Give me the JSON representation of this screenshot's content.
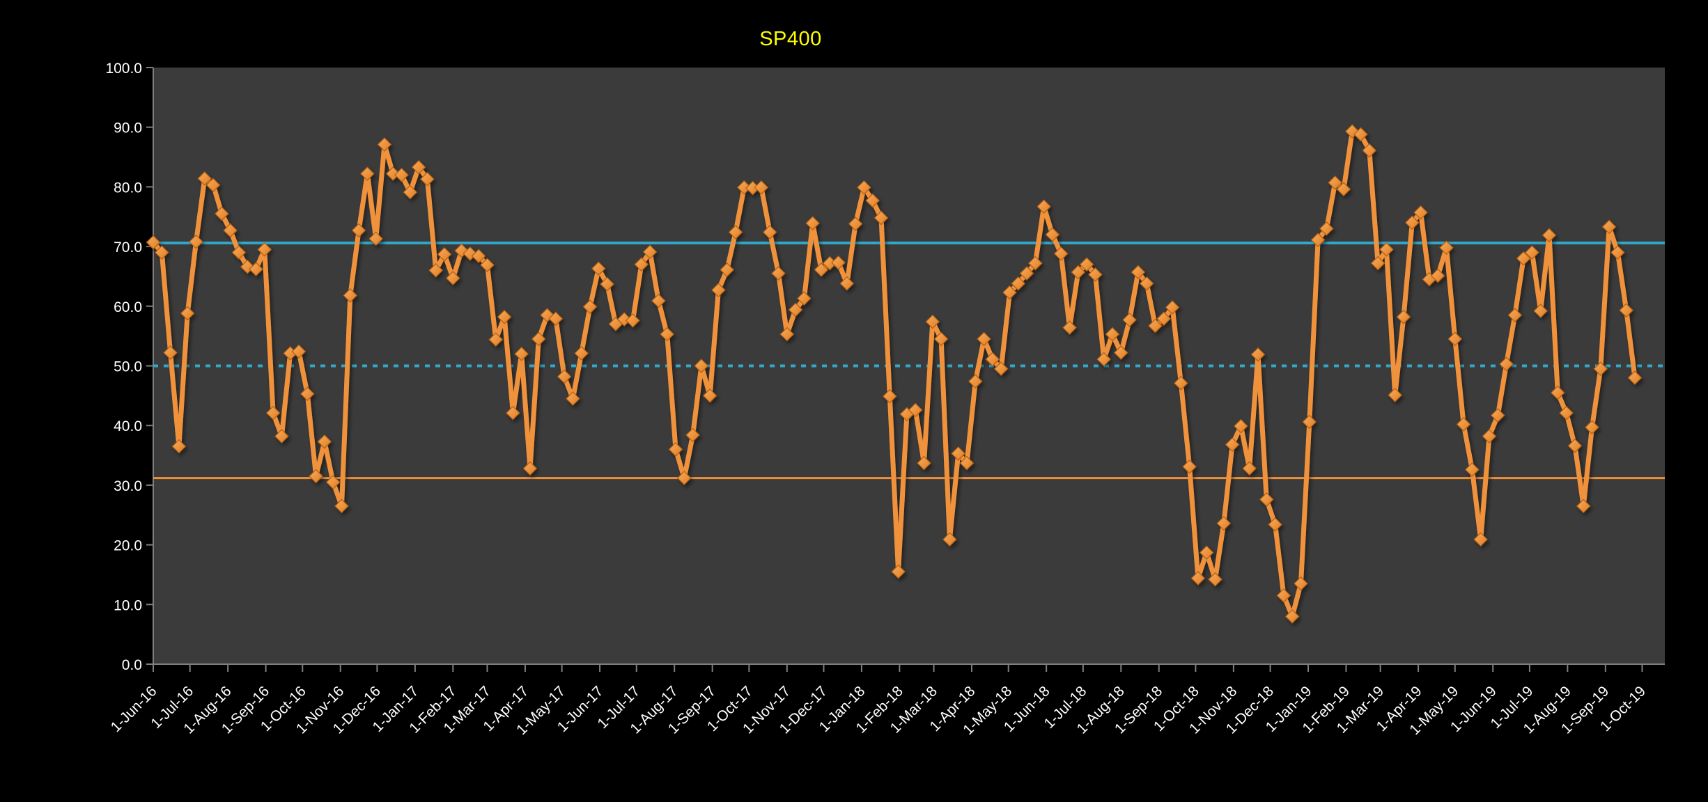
{
  "title": {
    "text": "SP400",
    "color": "#FFFF00"
  },
  "colors": {
    "page_bg": "#000000",
    "plot_bg": "#3B3B3B",
    "axis": "#7F7F7F",
    "tick_label": "#FFFFFF",
    "series": "#F0913A",
    "marker_light": "#F9AC5E",
    "marker_dark": "#E07C20",
    "marker_edge": "#AE5E13",
    "ref_cyan": "#33A7C9",
    "ref_orange": "#F0913A"
  },
  "chart_data": {
    "type": "line",
    "title": "SP400",
    "xlabel": "",
    "ylabel": "",
    "ylim": [
      0,
      100
    ],
    "y_tick_step": 10,
    "y_tick_decimals": 1,
    "grid": false,
    "legend": "none",
    "x_start_date": "1-Jun-16",
    "x_cadence": "weekly",
    "x_domain_weeks": 176.5,
    "x_tick_labels": [
      "1-Jun-16",
      "1-Jul-16",
      "1-Aug-16",
      "1-Sep-16",
      "1-Oct-16",
      "1-Nov-16",
      "1-Dec-16",
      "1-Jan-17",
      "1-Feb-17",
      "1-Mar-17",
      "1-Apr-17",
      "1-May-17",
      "1-Jun-17",
      "1-Jul-17",
      "1-Aug-17",
      "1-Sep-17",
      "1-Oct-17",
      "1-Nov-17",
      "1-Dec-17",
      "1-Jan-18",
      "1-Feb-18",
      "1-Mar-18",
      "1-Apr-18",
      "1-May-18",
      "1-Jun-18",
      "1-Jul-18",
      "1-Aug-18",
      "1-Sep-18",
      "1-Oct-18",
      "1-Nov-18",
      "1-Dec-18",
      "1-Jan-19",
      "1-Feb-19",
      "1-Mar-19",
      "1-Apr-19",
      "1-May-19",
      "1-Jun-19",
      "1-Jul-19",
      "1-Aug-19",
      "1-Sep-19",
      "1-Oct-19"
    ],
    "series": [
      {
        "name": "SP400",
        "marker": "diamond",
        "values": [
          70.7,
          69.0,
          52.2,
          36.5,
          58.8,
          70.8,
          81.4,
          80.3,
          75.5,
          72.7,
          69.0,
          66.6,
          66.2,
          69.5,
          42.1,
          38.2,
          52.1,
          52.4,
          45.3,
          31.5,
          37.3,
          30.5,
          26.5,
          61.8,
          72.7,
          82.2,
          71.3,
          87.1,
          82.2,
          82.0,
          79.1,
          83.3,
          81.3,
          66.0,
          68.7,
          64.7,
          69.3,
          68.8,
          68.4,
          66.9,
          54.4,
          58.2,
          42.1,
          52.0,
          32.8,
          54.5,
          58.5,
          57.9,
          48.2,
          44.5,
          52.1,
          59.9,
          66.3,
          63.7,
          57.0,
          57.8,
          57.6,
          67.0,
          69.1,
          60.9,
          55.3,
          36.0,
          31.2,
          38.4,
          50.0,
          45.0,
          62.7,
          66.1,
          72.4,
          79.9,
          79.8,
          79.9,
          72.4,
          65.5,
          55.3,
          59.4,
          61.3,
          73.9,
          66.1,
          67.2,
          67.3,
          63.8,
          73.8,
          79.9,
          77.7,
          74.8,
          44.9,
          15.5,
          41.9,
          42.6,
          33.7,
          57.4,
          54.5,
          20.9,
          35.3,
          33.7,
          47.4,
          54.5,
          51.1,
          49.5,
          62.3,
          63.8,
          65.5,
          67.2,
          76.7,
          72.0,
          68.8,
          56.4,
          65.7,
          67.0,
          65.3,
          51.1,
          55.3,
          52.2,
          57.7,
          65.7,
          63.8,
          56.7,
          57.9,
          59.8,
          47.1,
          33.1,
          14.4,
          18.7,
          14.2,
          23.6,
          36.8,
          39.9,
          32.8,
          51.9,
          27.6,
          23.4,
          11.5,
          8.0,
          13.5,
          40.6,
          71.1,
          73.0,
          80.7,
          79.6,
          89.3,
          88.8,
          86.1,
          67.2,
          69.5,
          45.1,
          58.2,
          74.0,
          75.7,
          64.5,
          65.1,
          69.8,
          54.5,
          40.2,
          32.6,
          20.9,
          38.2,
          41.7,
          50.3,
          58.5,
          68.0,
          69.0,
          59.2,
          71.9,
          45.5,
          42.1,
          36.6,
          26.5,
          39.7,
          49.5,
          73.3,
          69.0,
          59.3,
          48.0
        ]
      }
    ],
    "reference_lines": [
      {
        "name": "upper",
        "value": 70.6,
        "style": "solid",
        "color": "#33A7C9",
        "width": 4
      },
      {
        "name": "mid",
        "value": 50.0,
        "style": "dotted",
        "color": "#33A7C9",
        "width": 4
      },
      {
        "name": "lower",
        "value": 31.2,
        "style": "solid",
        "color": "#F0913A",
        "width": 3
      }
    ]
  }
}
